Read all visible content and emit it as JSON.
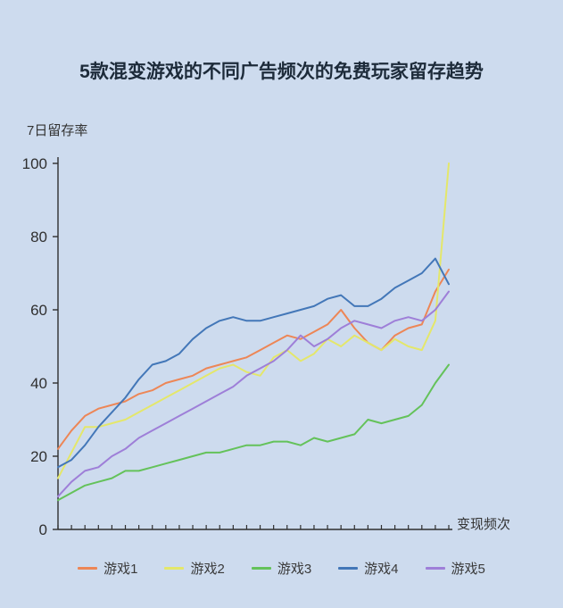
{
  "chart_data": {
    "type": "line",
    "title": "5款混变游戏的不同广告频次的免费玩家留存趋势",
    "ylabel": "7日留存率",
    "xlabel": "变现频次",
    "ylim": [
      0,
      100
    ],
    "yticks": [
      0,
      20,
      40,
      60,
      80,
      100
    ],
    "x_tick_count": 30,
    "x_ticks_labeled": false,
    "grid": false,
    "legend_position": "bottom",
    "background_color": "#cddbee",
    "axis_color": "#2f2f2f",
    "series": [
      {
        "name": "游戏1",
        "color": "#ed8656",
        "values": [
          22,
          27,
          31,
          33,
          34,
          35,
          37,
          38,
          40,
          41,
          42,
          44,
          45,
          46,
          47,
          49,
          51,
          53,
          52,
          54,
          56,
          60,
          55,
          51,
          49,
          53,
          55,
          56,
          65,
          71
        ]
      },
      {
        "name": "游戏2",
        "color": "#e4e76a",
        "values": [
          14,
          21,
          28,
          28,
          29,
          30,
          32,
          34,
          36,
          38,
          40,
          42,
          44,
          45,
          43,
          42,
          47,
          49,
          46,
          48,
          52,
          50,
          53,
          51,
          49,
          52,
          50,
          49,
          57,
          100
        ]
      },
      {
        "name": "游戏3",
        "color": "#64c25a",
        "values": [
          8,
          10,
          12,
          13,
          14,
          16,
          16,
          17,
          18,
          19,
          20,
          21,
          21,
          22,
          23,
          23,
          24,
          24,
          23,
          25,
          24,
          25,
          26,
          30,
          29,
          30,
          31,
          34,
          40,
          45
        ]
      },
      {
        "name": "游戏4",
        "color": "#4377b8",
        "values": [
          17,
          19,
          23,
          28,
          32,
          36,
          41,
          45,
          46,
          48,
          52,
          55,
          57,
          58,
          57,
          57,
          58,
          59,
          60,
          61,
          63,
          64,
          61,
          61,
          63,
          66,
          68,
          70,
          74,
          67
        ]
      },
      {
        "name": "游戏5",
        "color": "#9e7fd8",
        "values": [
          9,
          13,
          16,
          17,
          20,
          22,
          25,
          27,
          29,
          31,
          33,
          35,
          37,
          39,
          42,
          44,
          46,
          49,
          53,
          50,
          52,
          55,
          57,
          56,
          55,
          57,
          58,
          57,
          60,
          65
        ]
      }
    ]
  }
}
